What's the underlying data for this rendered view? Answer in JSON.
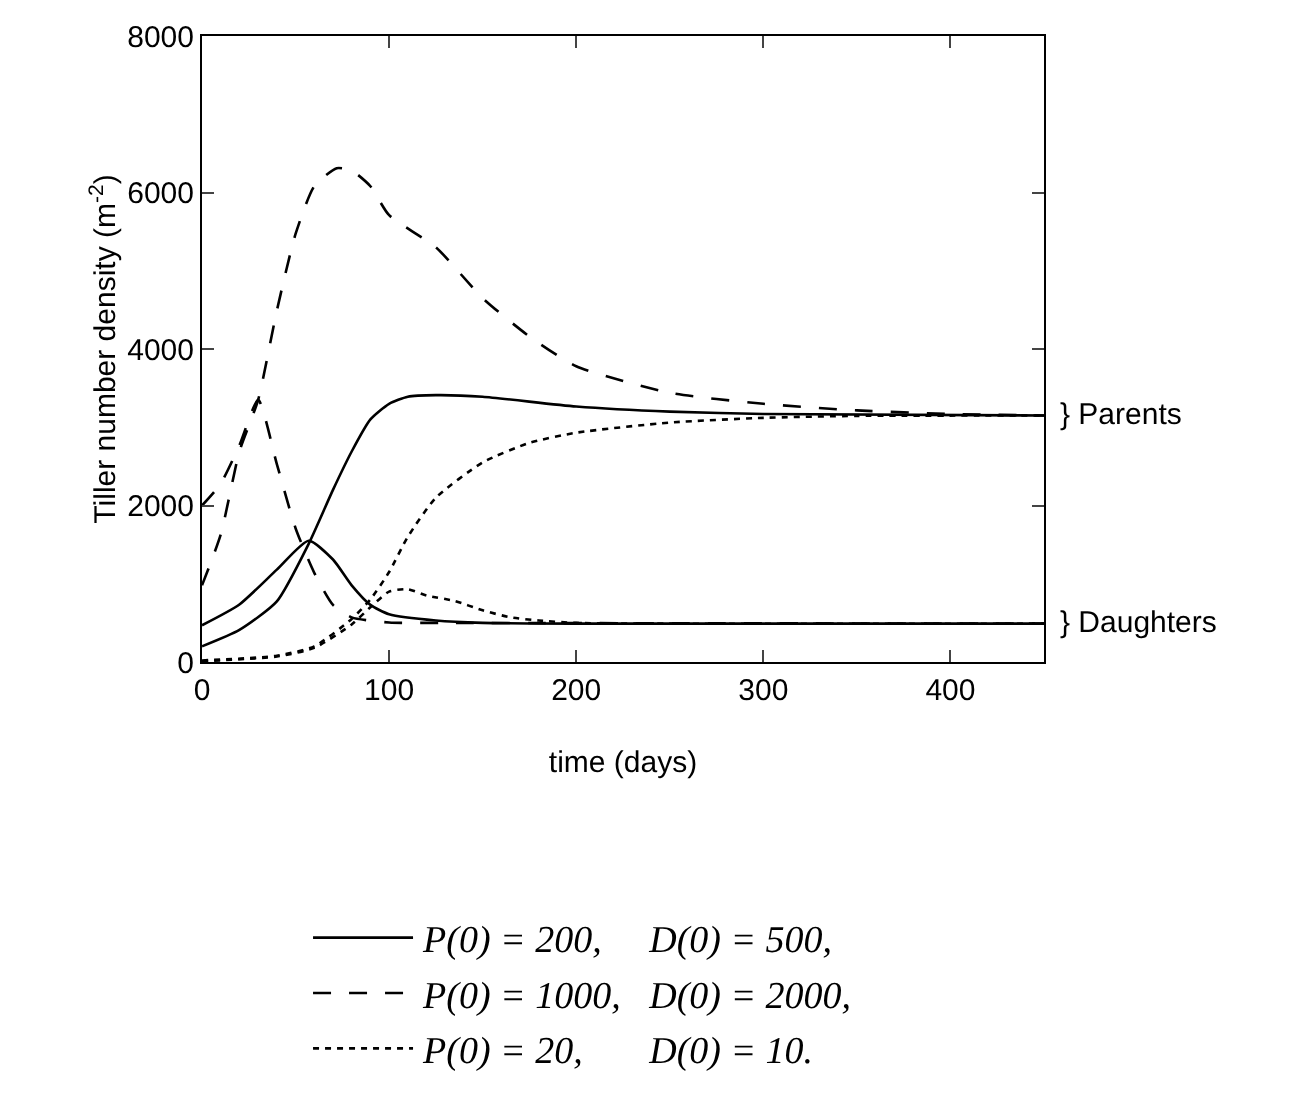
{
  "chart_data": {
    "type": "line",
    "xlabel": "time (days)",
    "ylabel": "Tiller number density (m$^{-2}$)",
    "xlim": [
      0,
      450
    ],
    "xticks": [
      0,
      100,
      200,
      300,
      400
    ],
    "ylim": [
      0,
      8000
    ],
    "yticks": [
      0,
      2000,
      4000,
      6000,
      8000
    ],
    "grid": false,
    "legend": "bottom",
    "marker": "none",
    "annotations": [
      {
        "text": "} Parents",
        "x": 450,
        "y": 3150
      },
      {
        "text": "} Daughters",
        "x": 450,
        "y": 490
      }
    ],
    "series": [
      {
        "name": "P(0) = 200,     D(0) = 500,",
        "color": "#000000",
        "line_style": "solid",
        "x": [
          0,
          20,
          40,
          57,
          70,
          80,
          90,
          100,
          110,
          125,
          150,
          200,
          250,
          300,
          450
        ],
        "values": [
          200,
          410,
          775,
          1510,
          2200,
          2690,
          3100,
          3300,
          3390,
          3410,
          3390,
          3265,
          3200,
          3170,
          3150
        ]
      },
      {
        "color": "#000000",
        "line_style": "solid",
        "x": [
          0,
          20,
          40,
          57,
          70,
          80,
          90,
          100,
          125,
          150,
          200,
          450
        ],
        "values": [
          470,
          735,
          1180,
          1550,
          1310,
          980,
          730,
          610,
          530,
          500,
          490,
          490
        ]
      },
      {
        "name": "P(0) = 1000,   D(0) = 2000,",
        "color": "#000000",
        "line_style": "dashed",
        "x": [
          0,
          10,
          20,
          30,
          40,
          50,
          60,
          72,
          80,
          90,
          100,
          125,
          150,
          175,
          200,
          250,
          300,
          350,
          400,
          450
        ],
        "values": [
          980,
          1630,
          2690,
          3350,
          4490,
          5470,
          6080,
          6310,
          6280,
          6080,
          5710,
          5300,
          4650,
          4160,
          3780,
          3440,
          3300,
          3215,
          3170,
          3150
        ]
      },
      {
        "color": "#000000",
        "line_style": "dashed",
        "x": [
          0,
          10,
          20,
          30,
          40,
          50,
          60,
          70,
          80,
          100,
          130,
          450
        ],
        "values": [
          2000,
          2280,
          2770,
          3350,
          2530,
          1710,
          1140,
          730,
          570,
          505,
          500,
          490
        ]
      },
      {
        "name": "P(0) = 20,       D(0) = 10.",
        "color": "#000000",
        "line_style": "dotted",
        "x": [
          0,
          40,
          60,
          80,
          90,
          100,
          110,
          125,
          150,
          175,
          200,
          250,
          300,
          350,
          450
        ],
        "values": [
          20,
          80,
          200,
          550,
          800,
          1150,
          1600,
          2100,
          2550,
          2800,
          2930,
          3060,
          3120,
          3145,
          3150
        ]
      },
      {
        "color": "#000000",
        "line_style": "dotted",
        "x": [
          0,
          40,
          60,
          80,
          90,
          100,
          110,
          120,
          135,
          150,
          165,
          180,
          200,
          250,
          450
        ],
        "values": [
          10,
          70,
          180,
          480,
          700,
          900,
          930,
          850,
          780,
          660,
          570,
          530,
          500,
          490,
          490
        ]
      }
    ]
  }
}
